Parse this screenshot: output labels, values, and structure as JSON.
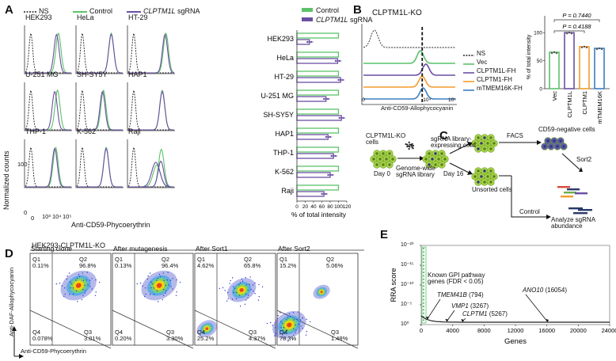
{
  "panels": {
    "A": "A",
    "B": "B",
    "C": "C",
    "D": "D",
    "E": "E"
  },
  "panelA": {
    "legend": {
      "ns": "NS",
      "control": "Control",
      "sgrna": "CLPTM1L",
      "sgrna_suffix": " sgRNA"
    },
    "cells": [
      "HEK293",
      "HeLa",
      "HT-29",
      "U-251 MG",
      "SH-SY5Y",
      "HAP1",
      "THP-1",
      "K-562",
      "Raji"
    ],
    "ylabel": "Normalized counts",
    "xlabel": "Anti-CD59-Phycoerythrin",
    "yticks": [
      "100",
      "0"
    ],
    "xticks": [
      "0",
      "10³",
      "10⁴",
      "10⁵"
    ],
    "colors": {
      "ns": "#222222",
      "control": "#5cc26a",
      "sgrna": "#6a4fa3"
    }
  },
  "chartA": {
    "chart_data": {
      "type": "bar",
      "categories": [
        "HEK293",
        "HeLa",
        "HT-29",
        "U-251 MG",
        "SH-SY5Y",
        "HAP1",
        "THP-1",
        "K-562",
        "Raji"
      ],
      "series": [
        {
          "name": "Control",
          "values": [
            100,
            100,
            100,
            100,
            100,
            100,
            100,
            100,
            100
          ]
        },
        {
          "name": "CLPTM1L sgRNA",
          "values": [
            30,
            98,
            105,
            70,
            107,
            75,
            88,
            80,
            65
          ]
        }
      ],
      "xlabel": "% of total intensity",
      "xticks": [
        "0",
        "20",
        "40",
        "60",
        "80",
        "100",
        "120"
      ],
      "xlim": [
        0,
        120
      ],
      "legend": {
        "control": "Control",
        "sgrna": "CLPTM1L",
        "sgrna_suffix": " sgRNA"
      }
    }
  },
  "panelB": {
    "title": "CLPTM1L-KO",
    "xlabel": "Anti-CD59-Allophycocyanin",
    "xticks": [
      "0",
      "10⁴",
      "10⁵"
    ],
    "legend": [
      "NS",
      "Vec",
      "CLPTM1L-FH",
      "CLPTM1-FH",
      "mTMEM16K-FH"
    ],
    "colors": [
      "#222222",
      "#5cc26a",
      "#6a4fa3",
      "#f39c2b",
      "#3b7fc4"
    ]
  },
  "chartB": {
    "chart_data": {
      "type": "bar",
      "categories": [
        "Vec",
        "CLPTM1L",
        "CLPTM1",
        "mTMEM16K"
      ],
      "values": [
        65,
        100,
        75,
        72
      ],
      "ylabel": "% of total intensity",
      "yticks": [
        "0",
        "50",
        "100"
      ],
      "ylim": [
        0,
        130
      ],
      "pvalues": [
        "P = 0.7440",
        "P = 0.4188"
      ]
    }
  },
  "panelC": {
    "ko_cells": "CLPTM1L-KO\ncells",
    "day0": "Day 0",
    "library": "Genome-wide\nsgRNA library",
    "expressing": "sgRNA library-\nexpressing cells",
    "day16": "Day 16",
    "facs": "FACS",
    "neg": "CD59-negative cells",
    "sort2": "Sort2",
    "unsorted": "Unsorted cells",
    "control": "Control",
    "analyze": "Analyze sgRNA\nabundance"
  },
  "panelD": {
    "title": "HEK293-CLPTM1L-KO",
    "ylabel": "Anti-DAF-Allophycocyanin",
    "xlabel": "Anti-CD59-Phycoerythrin",
    "plots": [
      {
        "title": "Starting clone",
        "q1": "Q1",
        "q1v": "0.11%",
        "q2": "Q2",
        "q2v": "96.8%",
        "q3": "Q3",
        "q3v": "3.01%",
        "q4": "Q4",
        "q4v": "0.078%"
      },
      {
        "title": "After mutagenesis",
        "q1": "Q1",
        "q1v": "0.13%",
        "q2": "Q2",
        "q2v": "96.4%",
        "q3": "Q3",
        "q3v": "3.30%",
        "q4": "Q4",
        "q4v": "0.20%"
      },
      {
        "title": "After Sort1",
        "q1": "Q1",
        "q1v": "4.62%",
        "q2": "Q2",
        "q2v": "65.8%",
        "q3": "Q3",
        "q3v": "4.37%",
        "q4": "Q4",
        "q4v": "25.2%"
      },
      {
        "title": "After Sort2",
        "q1": "Q1",
        "q1v": "15.2%",
        "q2": "Q2",
        "q2v": "5.06%",
        "q3": "Q3",
        "q3v": "1.48%",
        "q4": "Q4",
        "q4v": "78.3%"
      }
    ]
  },
  "chartE": {
    "chart_data": {
      "type": "scatter",
      "xlabel": "Genes",
      "ylabel": "RRA score",
      "xticks": [
        "0",
        "4000",
        "8000",
        "12000",
        "16000",
        "20000",
        "24000"
      ],
      "xlim": [
        0,
        24000
      ],
      "yticks": [
        "10⁻²⁰",
        "10⁻¹⁵",
        "10⁻¹⁰",
        "10⁻⁵",
        "10⁰"
      ],
      "annotations": [
        {
          "text": "Known GPI pathway\ngenes (FDR < 0.05)"
        },
        {
          "gene": "TMEM41B",
          "rank": "(794)"
        },
        {
          "gene": "VMP1",
          "rank": "(3267)"
        },
        {
          "gene": "CLPTM1",
          "rank": "(5267)"
        },
        {
          "gene": "ANO10",
          "rank": "(16054)"
        }
      ]
    }
  }
}
